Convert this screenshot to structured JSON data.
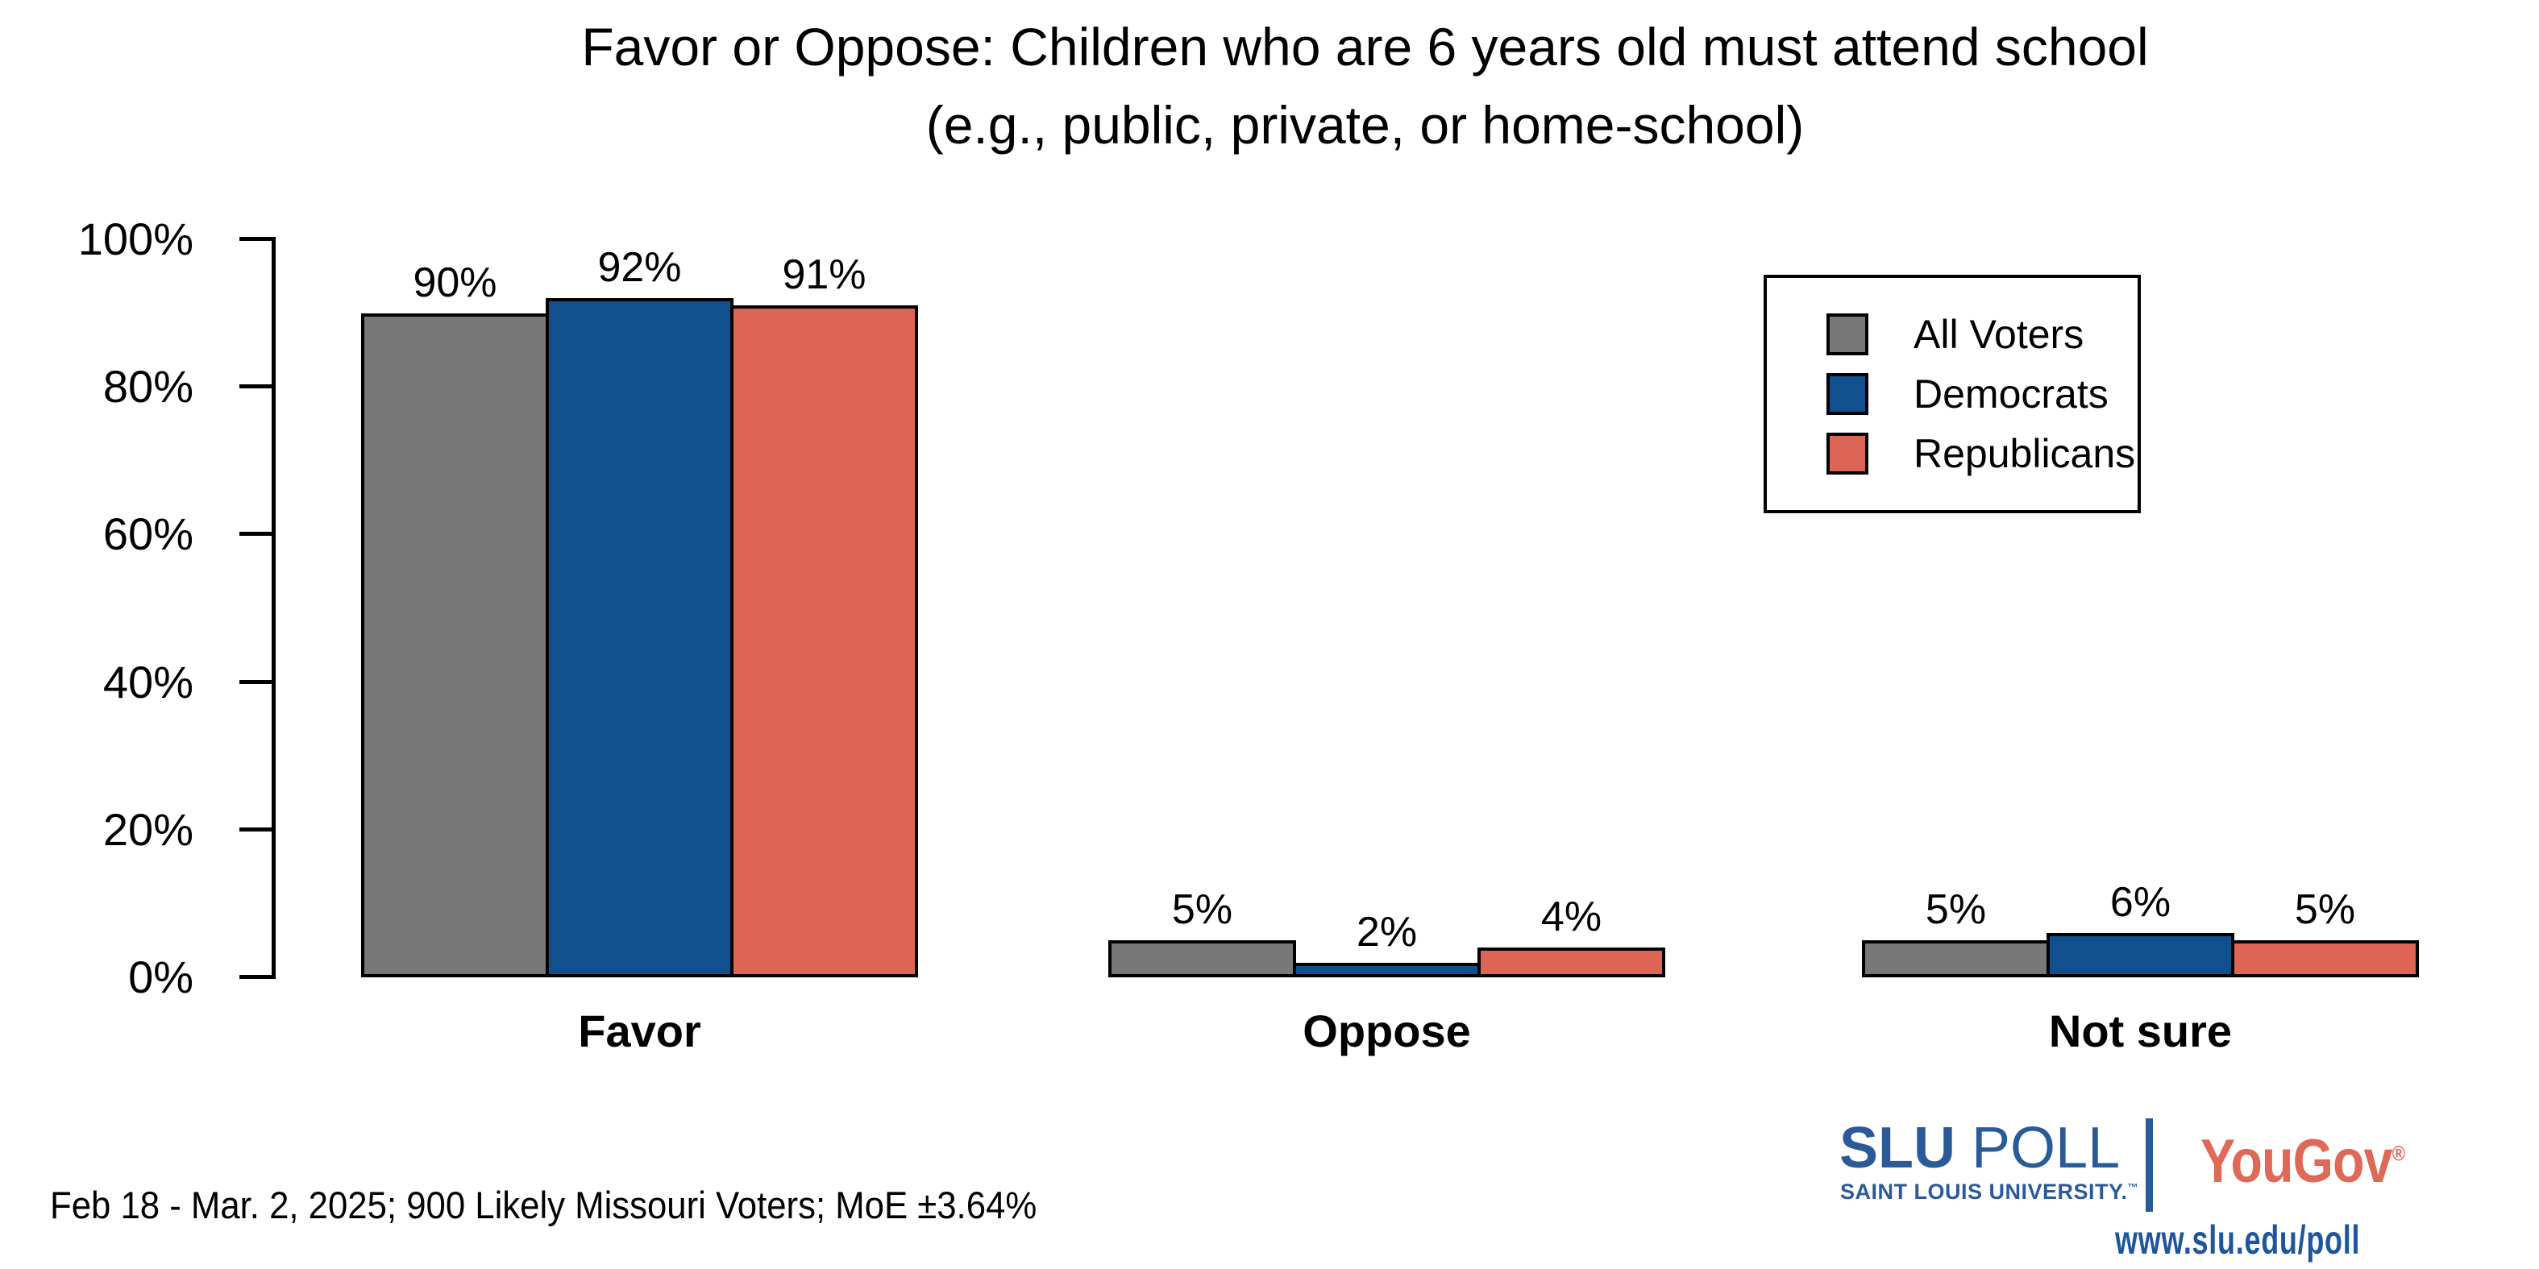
{
  "chart_data": {
    "type": "bar",
    "title": "Favor or Oppose: Children who are 6 years old must attend school",
    "subtitle": "(e.g., public, private, or home-school)",
    "categories": [
      "Favor",
      "Oppose",
      "Not sure"
    ],
    "series": [
      {
        "name": "All Voters",
        "color": "#787878",
        "values": [
          90,
          5,
          5
        ]
      },
      {
        "name": "Democrats",
        "color": "#11508e",
        "values": [
          92,
          2,
          6
        ]
      },
      {
        "name": "Republicans",
        "color": "#dd6556",
        "values": [
          91,
          4,
          5
        ]
      }
    ],
    "value_suffix": "%",
    "y_axis": {
      "min": 0,
      "max": 100,
      "tick_values": [
        0,
        20,
        40,
        60,
        80,
        100
      ],
      "tick_labels": [
        "0%",
        "20%",
        "40%",
        "60%",
        "80%",
        "100%"
      ]
    },
    "grid": false,
    "legend_position": "top-right",
    "bar_border_color": "#000000"
  },
  "footer": {
    "caption": "Feb 18 - Mar. 2, 2025; 900 Likely Missouri Voters; MoE ±3.64%",
    "slu_logo": {
      "primary": "SLU",
      "secondary": "POLL",
      "subtext": "SAINT LOUIS UNIVERSITY.",
      "trademark": "™",
      "color": "#2b5a98"
    },
    "yougov_logo": {
      "text": "YouGov",
      "registered": "®",
      "color": "#df6857"
    },
    "url": {
      "text": "www.slu.edu/poll",
      "color": "#1e569e"
    }
  }
}
